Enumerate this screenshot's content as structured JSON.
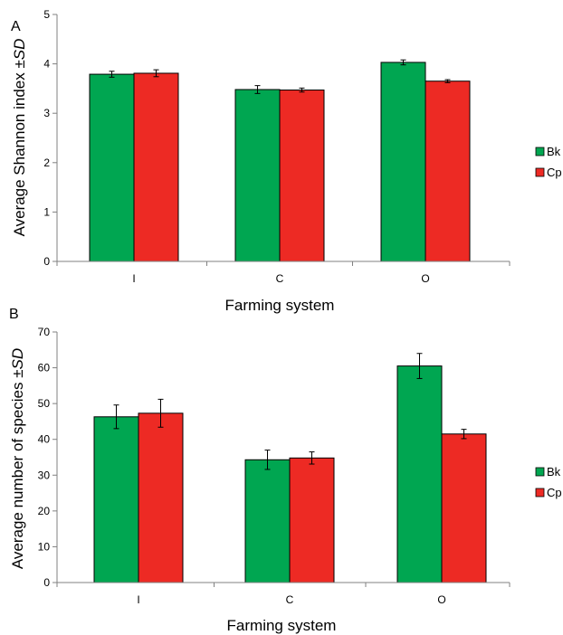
{
  "chart_data": [
    {
      "type": "bar",
      "panel_label": "A",
      "categories": [
        "I",
        "C",
        "O"
      ],
      "series": [
        {
          "name": "Bk",
          "color": "#00a651",
          "values": [
            3.79,
            3.48,
            4.03
          ],
          "errors": [
            0.06,
            0.08,
            0.05
          ]
        },
        {
          "name": "Cp",
          "color": "#ed2a24",
          "values": [
            3.81,
            3.47,
            3.65
          ],
          "errors": [
            0.07,
            0.04,
            0.03
          ]
        }
      ],
      "xlabel": "Farming system",
      "ylabel_main": "Average Shannon index ±",
      "ylabel_italic": "SD",
      "ylim": [
        0,
        5
      ],
      "yticks": [
        "0",
        "1",
        "2",
        "3",
        "4",
        "5"
      ],
      "grid": false,
      "legend_position": "right"
    },
    {
      "type": "bar",
      "panel_label": "B",
      "categories": [
        "I",
        "C",
        "O"
      ],
      "series": [
        {
          "name": "Bk",
          "color": "#00a651",
          "values": [
            46.3,
            34.3,
            60.5
          ],
          "errors": [
            3.3,
            2.7,
            3.5
          ]
        },
        {
          "name": "Cp",
          "color": "#ed2a24",
          "values": [
            47.3,
            34.8,
            41.5
          ],
          "errors": [
            3.9,
            1.7,
            1.3
          ]
        }
      ],
      "xlabel": "Farming system",
      "ylabel_main": "Average number of species ±",
      "ylabel_italic": "SD",
      "ylim": [
        0,
        70
      ],
      "yticks": [
        "0",
        "10",
        "20",
        "30",
        "40",
        "50",
        "60",
        "70"
      ],
      "grid": false,
      "legend_position": "right"
    }
  ]
}
